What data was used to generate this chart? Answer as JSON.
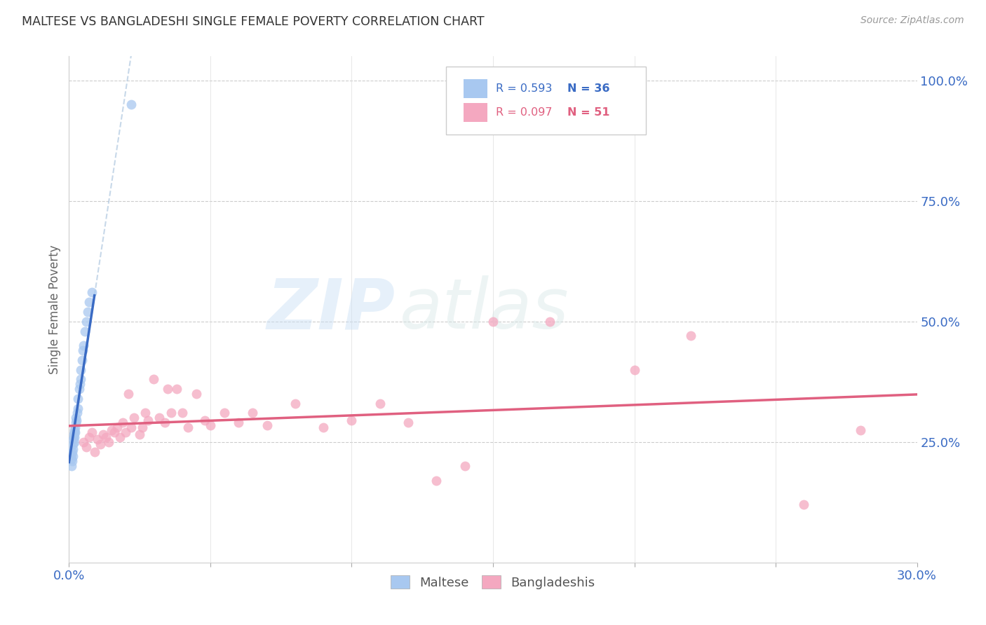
{
  "title": "MALTESE VS BANGLADESHI SINGLE FEMALE POVERTY CORRELATION CHART",
  "source": "Source: ZipAtlas.com",
  "ylabel": "Single Female Poverty",
  "right_yticks": [
    "100.0%",
    "75.0%",
    "50.0%",
    "25.0%"
  ],
  "right_ytick_vals": [
    1.0,
    0.75,
    0.5,
    0.25
  ],
  "maltese_color": "#a8c8f0",
  "maltese_line_color": "#3a6bc4",
  "bangladeshi_color": "#f4a8c0",
  "bangladeshi_line_color": "#e06080",
  "watermark_zip": "ZIP",
  "watermark_atlas": "atlas",
  "xlim": [
    0.0,
    0.3
  ],
  "ylim": [
    0.0,
    1.05
  ],
  "maltese_x": [
    0.0008,
    0.001,
    0.001,
    0.0012,
    0.0012,
    0.0014,
    0.0014,
    0.0015,
    0.0015,
    0.0016,
    0.0016,
    0.0018,
    0.0018,
    0.002,
    0.002,
    0.0022,
    0.0022,
    0.0024,
    0.0025,
    0.0026,
    0.0028,
    0.003,
    0.0032,
    0.0035,
    0.0038,
    0.004,
    0.0042,
    0.0045,
    0.0048,
    0.005,
    0.0055,
    0.006,
    0.0065,
    0.007,
    0.008,
    0.022
  ],
  "maltese_y": [
    0.2,
    0.215,
    0.225,
    0.21,
    0.23,
    0.22,
    0.235,
    0.245,
    0.255,
    0.26,
    0.265,
    0.25,
    0.27,
    0.26,
    0.275,
    0.27,
    0.28,
    0.29,
    0.3,
    0.295,
    0.31,
    0.32,
    0.34,
    0.36,
    0.37,
    0.38,
    0.4,
    0.42,
    0.44,
    0.45,
    0.48,
    0.5,
    0.52,
    0.54,
    0.56,
    0.95
  ],
  "bangladeshi_x": [
    0.005,
    0.006,
    0.007,
    0.008,
    0.009,
    0.01,
    0.011,
    0.012,
    0.013,
    0.014,
    0.015,
    0.016,
    0.017,
    0.018,
    0.019,
    0.02,
    0.021,
    0.022,
    0.023,
    0.025,
    0.026,
    0.027,
    0.028,
    0.03,
    0.032,
    0.034,
    0.035,
    0.036,
    0.038,
    0.04,
    0.042,
    0.045,
    0.048,
    0.05,
    0.055,
    0.06,
    0.065,
    0.07,
    0.08,
    0.09,
    0.1,
    0.11,
    0.12,
    0.13,
    0.14,
    0.15,
    0.17,
    0.2,
    0.22,
    0.26,
    0.28
  ],
  "bangladeshi_y": [
    0.25,
    0.24,
    0.26,
    0.27,
    0.23,
    0.255,
    0.245,
    0.265,
    0.26,
    0.25,
    0.275,
    0.27,
    0.28,
    0.26,
    0.29,
    0.27,
    0.35,
    0.28,
    0.3,
    0.265,
    0.28,
    0.31,
    0.295,
    0.38,
    0.3,
    0.29,
    0.36,
    0.31,
    0.36,
    0.31,
    0.28,
    0.35,
    0.295,
    0.285,
    0.31,
    0.29,
    0.31,
    0.285,
    0.33,
    0.28,
    0.295,
    0.33,
    0.29,
    0.17,
    0.2,
    0.5,
    0.5,
    0.4,
    0.47,
    0.12,
    0.275
  ]
}
